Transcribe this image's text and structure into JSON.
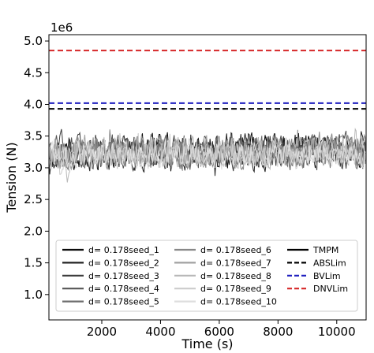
{
  "chart_data": {
    "type": "line",
    "title": "",
    "xlabel": "Time (s)",
    "ylabel": "Tension (N)",
    "offset_label": "1e6",
    "xlim": [
      200,
      11000
    ],
    "ylim": [
      0.6,
      5.1
    ],
    "x_ticks": [
      2000,
      4000,
      6000,
      8000,
      10000
    ],
    "x_tick_labels": [
      "2000",
      "4000",
      "6000",
      "8000",
      "10000"
    ],
    "y_ticks": [
      1.0,
      1.5,
      2.0,
      2.5,
      3.0,
      3.5,
      4.0,
      4.5,
      5.0
    ],
    "y_tick_labels": [
      "1.0",
      "1.5",
      "2.0",
      "2.5",
      "3.0",
      "3.5",
      "4.0",
      "4.5",
      "5.0"
    ],
    "grid": false,
    "legend_position": "lower center",
    "series": [
      {
        "name": "d= 0.178seed_1",
        "color": "#0b0b0b",
        "style": "solid",
        "center": 3.25,
        "amplitude": 0.38,
        "seed": 11
      },
      {
        "name": "d= 0.178seed_2",
        "color": "#222222",
        "style": "solid",
        "center": 3.25,
        "amplitude": 0.38,
        "seed": 23
      },
      {
        "name": "d= 0.178seed_3",
        "color": "#3b3b3b",
        "style": "solid",
        "center": 3.25,
        "amplitude": 0.37,
        "seed": 37
      },
      {
        "name": "d= 0.178seed_4",
        "color": "#555555",
        "style": "solid",
        "center": 3.25,
        "amplitude": 0.37,
        "seed": 41
      },
      {
        "name": "d= 0.178seed_5",
        "color": "#6e6e6e",
        "style": "solid",
        "center": 3.25,
        "amplitude": 0.36,
        "seed": 53
      },
      {
        "name": "d= 0.178seed_6",
        "color": "#888888",
        "style": "solid",
        "center": 3.25,
        "amplitude": 0.36,
        "seed": 67
      },
      {
        "name": "d= 0.178seed_7",
        "color": "#a0a0a0",
        "style": "solid",
        "center": 3.25,
        "amplitude": 0.35,
        "seed": 79
      },
      {
        "name": "d= 0.178seed_8",
        "color": "#b8b8b8",
        "style": "solid",
        "center": 3.25,
        "amplitude": 0.35,
        "seed": 83
      },
      {
        "name": "d= 0.178seed_9",
        "color": "#cccccc",
        "style": "solid",
        "center": 3.22,
        "amplitude": 0.33,
        "seed": 97
      },
      {
        "name": "d= 0.178seed_10",
        "color": "#dedede",
        "style": "solid",
        "center": 3.2,
        "amplitude": 0.3,
        "seed": 101
      }
    ],
    "reference_lines": [
      {
        "name": "TMPM",
        "color": "#000000",
        "style": "solid",
        "value": null
      },
      {
        "name": "ABSLim",
        "color": "#000000",
        "style": "dashed",
        "value": 3.93
      },
      {
        "name": "BVLim",
        "color": "#1f1fbf",
        "style": "dashed",
        "value": 4.02
      },
      {
        "name": "DNVLim",
        "color": "#d62728",
        "style": "dashed",
        "value": 4.85
      }
    ]
  }
}
